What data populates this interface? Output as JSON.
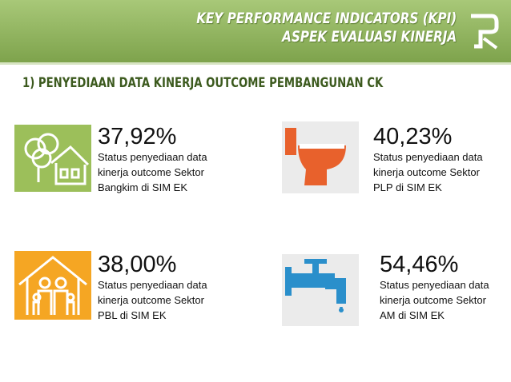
{
  "header": {
    "title_lines": [
      "KEY PERFORMANCE INDICATORS (KPI)",
      "ASPEK EVALUASI KINERJA"
    ]
  },
  "section": {
    "heading": "1) PENYEDIAAN DATA KINERJA OUTCOME PEMBANGUNAN CK"
  },
  "items": [
    {
      "value": "37,92%",
      "lines": [
        "Status penyediaan data",
        "kinerja outcome Sektor",
        "Bangkim di SIM EK"
      ]
    },
    {
      "value": "40,23%",
      "lines": [
        "Status penyediaan data",
        "kinerja outcome Sektor",
        "PLP di SIM EK"
      ]
    },
    {
      "value": "38,00%",
      "lines": [
        "Status penyediaan data",
        "kinerja outcome Sektor",
        "PBL di SIM EK"
      ]
    },
    {
      "value": "54,46%",
      "lines": [
        "Status penyediaan data",
        "kinerja outcome Sektor",
        "AM di SIM EK"
      ]
    }
  ]
}
